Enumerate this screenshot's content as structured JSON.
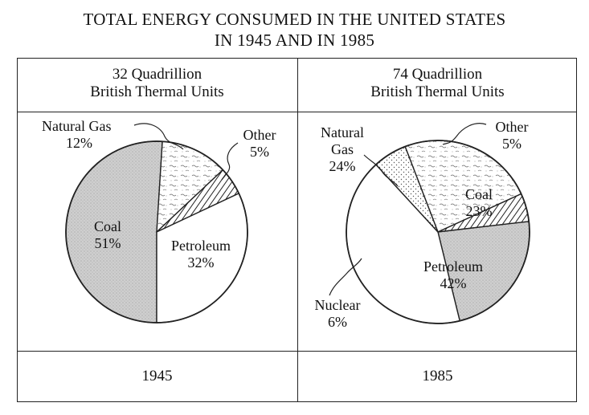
{
  "title": {
    "line1": "TOTAL ENERGY CONSUMED IN THE UNITED STATES",
    "line2": "IN 1945 AND IN 1985"
  },
  "chart_data": [
    {
      "type": "pie",
      "header_line1": "32 Quadrillion",
      "header_line2": "British Thermal Units",
      "total": "32 Quadrillion British Thermal Units",
      "year": "1945",
      "slices": [
        {
          "name": "Coal",
          "percent_label": "51%",
          "value": 51,
          "pattern": "dots-gray"
        },
        {
          "name": "Natural Gas",
          "percent_label": "12%",
          "value": 12,
          "pattern": "squiggle"
        },
        {
          "name": "Other",
          "percent_label": "5%",
          "value": 5,
          "pattern": "hatch"
        },
        {
          "name": "Petroleum",
          "percent_label": "32%",
          "value": 32,
          "pattern": "white"
        }
      ]
    },
    {
      "type": "pie",
      "header_line1": "74 Quadrillion",
      "header_line2": "British Thermal Units",
      "total": "74 Quadrillion British Thermal Units",
      "year": "1985",
      "slices": [
        {
          "name": "Natural Gas",
          "name_line1": "Natural",
          "name_line2": "Gas",
          "percent_label": "24%",
          "value": 24,
          "pattern": "squiggle"
        },
        {
          "name": "Other",
          "percent_label": "5%",
          "value": 5,
          "pattern": "hatch"
        },
        {
          "name": "Coal",
          "percent_label": "23%",
          "value": 23,
          "pattern": "dots-gray"
        },
        {
          "name": "Petroleum",
          "percent_label": "42%",
          "value": 42,
          "pattern": "white"
        },
        {
          "name": "Nuclear",
          "percent_label": "6%",
          "value": 6,
          "pattern": "dots"
        }
      ]
    }
  ],
  "colors": {
    "ink": "#222222",
    "coal_fill": "#cfcfcf",
    "paper": "#ffffff"
  }
}
